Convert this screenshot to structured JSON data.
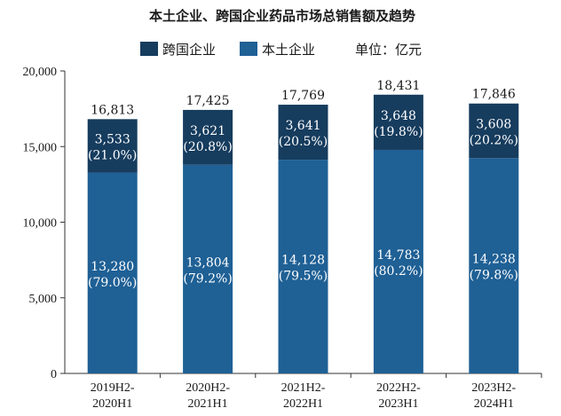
{
  "chart_data": {
    "type": "bar",
    "stacked": true,
    "title": "本土企业、跨国企业药品市场总销售额及趋势",
    "unit_label": "单位：亿元",
    "categories": [
      [
        "2019H2-",
        "2020H1"
      ],
      [
        "2020H2-",
        "2021H1"
      ],
      [
        "2021H2-",
        "2022H1"
      ],
      [
        "2022H2-",
        "2023H1"
      ],
      [
        "2023H2-",
        "2024H1"
      ]
    ],
    "series": [
      {
        "name": "本土企业",
        "color": "#1f6095",
        "values": [
          13280,
          13804,
          14128,
          14783,
          14238
        ],
        "value_labels": [
          "13,280",
          "13,804",
          "14,128",
          "14,783",
          "14,238"
        ],
        "share_labels": [
          "(79.0%)",
          "(79.2%)",
          "(79.5%)",
          "(80.2%)",
          "(79.8%)"
        ]
      },
      {
        "name": "跨国企业",
        "color": "#163c5e",
        "values": [
          3533,
          3621,
          3641,
          3648,
          3608
        ],
        "value_labels": [
          "3,533",
          "3,621",
          "3,641",
          "3,648",
          "3,608"
        ],
        "share_labels": [
          "(21.0%)",
          "(20.8%)",
          "(20.5%)",
          "(19.8%)",
          "(20.2%)"
        ]
      }
    ],
    "totals": [
      16813,
      17425,
      17769,
      18431,
      17846
    ],
    "total_labels": [
      "16,813",
      "17,425",
      "17,769",
      "18,431",
      "17,846"
    ],
    "legend_order": [
      "跨国企业",
      "本土企业"
    ],
    "ylim": [
      0,
      20000
    ],
    "yticks": [
      0,
      5000,
      10000,
      15000,
      20000
    ],
    "ytick_labels": [
      "0",
      "5,000",
      "10,000",
      "15,000",
      "20,000"
    ],
    "grid": false,
    "legend_position": "top"
  }
}
